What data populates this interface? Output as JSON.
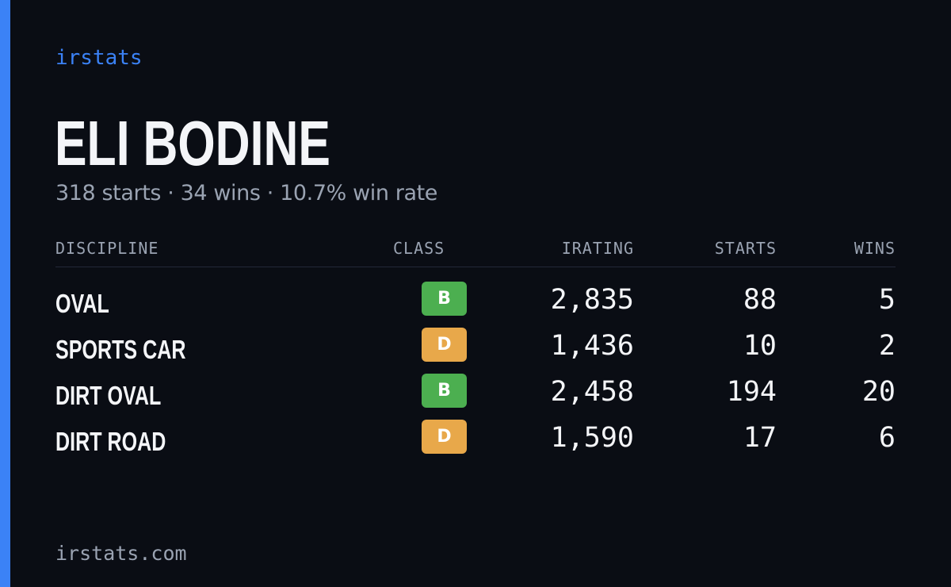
{
  "colors": {
    "accent": "#3b82f6",
    "background": "#0a0d14",
    "class_b": "#4caf50",
    "class_d": "#e8a84a"
  },
  "brand": "irstats",
  "driver": {
    "name": "ELI BODINE",
    "starts_summary": "318 starts",
    "wins_summary": "34 wins",
    "win_rate_summary": "10.7% win rate",
    "separator": "·"
  },
  "table": {
    "headers": {
      "discipline": "DISCIPLINE",
      "class": "CLASS",
      "irating": "IRATING",
      "starts": "STARTS",
      "wins": "WINS"
    },
    "rows": [
      {
        "discipline": "OVAL",
        "class": "B",
        "irating": "2,835",
        "starts": "88",
        "wins": "5"
      },
      {
        "discipline": "SPORTS CAR",
        "class": "D",
        "irating": "1,436",
        "starts": "10",
        "wins": "2"
      },
      {
        "discipline": "DIRT OVAL",
        "class": "B",
        "irating": "2,458",
        "starts": "194",
        "wins": "20"
      },
      {
        "discipline": "DIRT ROAD",
        "class": "D",
        "irating": "1,590",
        "starts": "17",
        "wins": "6"
      }
    ]
  },
  "footer": {
    "url": "irstats.com"
  }
}
